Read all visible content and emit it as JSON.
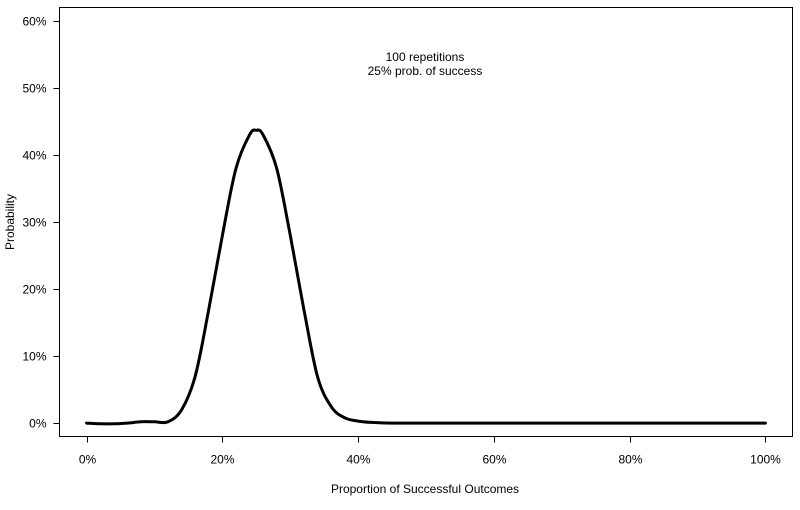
{
  "chart_data": {
    "type": "line",
    "title": "",
    "xlabel": "Proportion of Successful Outcomes",
    "ylabel": "Probability",
    "xlim": [
      -0.04,
      1.04
    ],
    "ylim": [
      -0.02,
      0.62
    ],
    "x_ticks": [
      0,
      0.2,
      0.4,
      0.6,
      0.8,
      1.0
    ],
    "x_tick_labels": [
      "0%",
      "20%",
      "40%",
      "60%",
      "80%",
      "100%"
    ],
    "y_ticks": [
      0,
      0.1,
      0.2,
      0.3,
      0.4,
      0.5,
      0.6
    ],
    "y_tick_labels": [
      "0%",
      "10%",
      "20%",
      "30%",
      "40%",
      "50%",
      "60%"
    ],
    "annotations": [
      "100 repetitions",
      "25% prob. of success"
    ],
    "grid": false,
    "legend": "none",
    "colors": {
      "line": "#000000",
      "frame": "#000000"
    },
    "series": [
      {
        "x": [
          0,
          0.02,
          0.04,
          0.06,
          0.08,
          0.1,
          0.12,
          0.14,
          0.16,
          0.18,
          0.2,
          0.22,
          0.24,
          0.25,
          0.26,
          0.28,
          0.3,
          0.32,
          0.34,
          0.36,
          0.38,
          0.4,
          0.42,
          0.45,
          0.5,
          0.6,
          0.7,
          0.8,
          0.9,
          1.0
        ],
        "values": [
          0.0,
          -0.001,
          -0.001,
          0.0,
          0.002,
          0.002,
          0.002,
          0.02,
          0.07,
          0.17,
          0.28,
          0.38,
          0.43,
          0.437,
          0.43,
          0.38,
          0.28,
          0.17,
          0.07,
          0.025,
          0.008,
          0.003,
          0.001,
          0.0,
          0.0,
          0.0,
          0.0,
          0.0,
          0.0,
          0.0
        ]
      }
    ]
  }
}
